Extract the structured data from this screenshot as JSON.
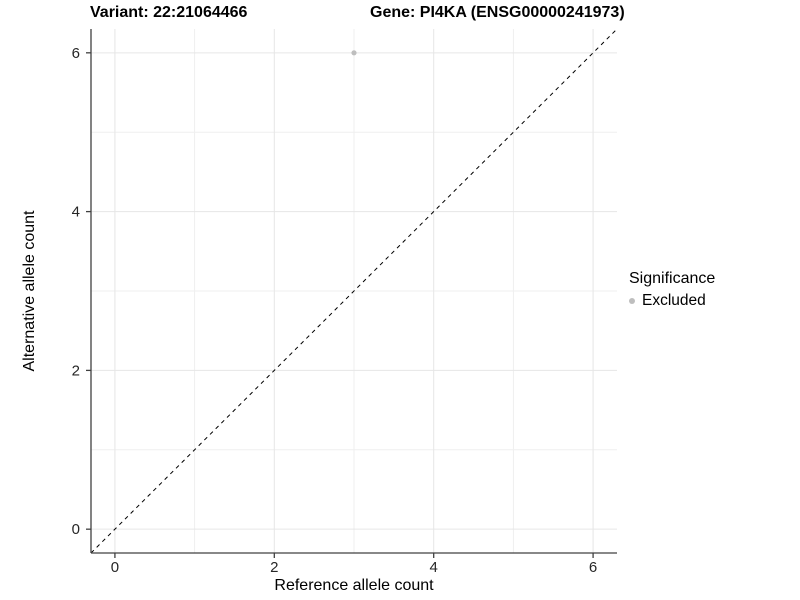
{
  "chart_data": {
    "type": "scatter",
    "title_left": "Variant: 22:21064466",
    "title_right": "Gene: PI4KA (ENSG00000241973)",
    "xlabel": "Reference allele count",
    "ylabel": "Alternative allele count",
    "xlim": [
      -0.3,
      6.3
    ],
    "ylim": [
      -0.3,
      6.3
    ],
    "xticks": [
      0,
      2,
      4,
      6
    ],
    "yticks": [
      0,
      2,
      4,
      6
    ],
    "minor_xticks": [
      1,
      3,
      5
    ],
    "minor_yticks": [
      1,
      3,
      5
    ],
    "grid": {
      "major_color": "#e6e6e6",
      "minor_color": "#efefef"
    },
    "identity_line": {
      "style": "dashed",
      "color": "#000000",
      "from": [
        -0.3,
        -0.3
      ],
      "to": [
        6.3,
        6.3
      ]
    },
    "series": [
      {
        "name": "Excluded",
        "color": "#bebebe",
        "points": [
          {
            "x": 3,
            "y": 6
          }
        ]
      }
    ],
    "legend": {
      "title": "Significance",
      "position": "right",
      "items": [
        {
          "label": "Excluded",
          "color": "#bebebe",
          "marker": "circle"
        }
      ]
    }
  },
  "colors": {
    "axis_line": "#404040",
    "tick_label": "#262626",
    "background": "#ffffff"
  }
}
